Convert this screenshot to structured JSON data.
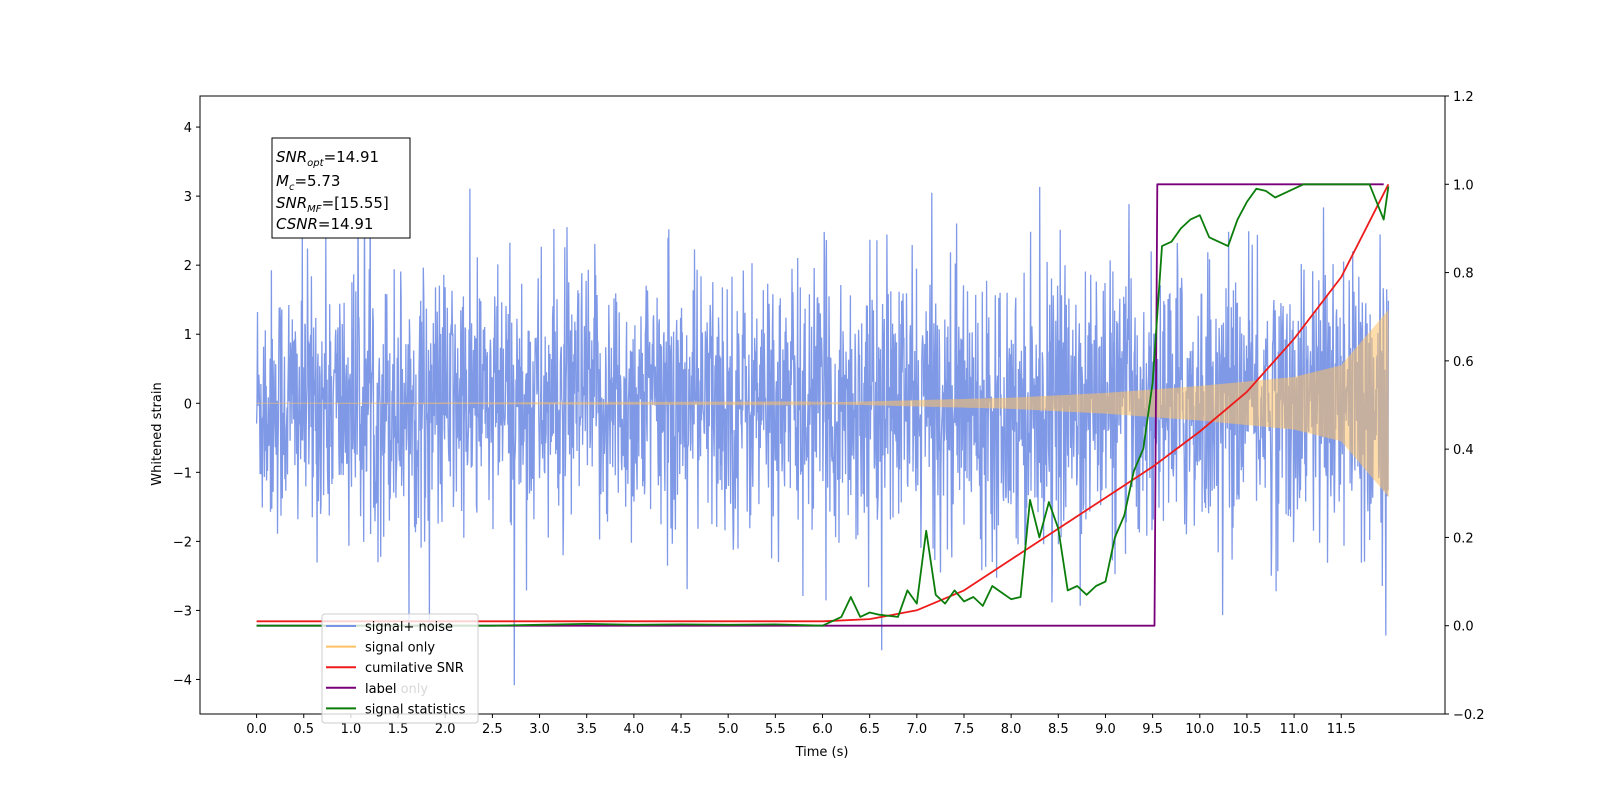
{
  "chart_data": {
    "type": "line",
    "xlabel": "Time (s)",
    "ylabel": "Whitened strain",
    "xlim": [
      -0.6,
      12.6
    ],
    "ylim": [
      -4.5,
      4.45
    ],
    "y2lim": [
      -0.2,
      1.2
    ],
    "x_ticks": [
      "0.0",
      "0.5",
      "1.0",
      "1.5",
      "2.0",
      "2.5",
      "3.0",
      "3.5",
      "4.0",
      "4.5",
      "5.0",
      "5.5",
      "6.0",
      "6.5",
      "7.0",
      "7.5",
      "8.0",
      "8.5",
      "9.0",
      "9.5",
      "10.0",
      "10.5",
      "11.0",
      "11.5"
    ],
    "y_ticks": [
      "4",
      "3",
      "2",
      "1",
      "0",
      "−1",
      "−2",
      "−3",
      "−4"
    ],
    "y2_ticks": [
      "1.2",
      "1.0",
      "0.8",
      "0.6",
      "0.4",
      "0.2",
      "0.0",
      "−0.2"
    ],
    "annotation": {
      "snr_opt": {
        "base": "SNR",
        "sub": "opt",
        "value": "=14.91"
      },
      "mc": {
        "base": "M",
        "sub": "c",
        "value": "=5.73"
      },
      "snr_mf": {
        "base": "SNR",
        "sub": "MF",
        "value": "=[15.55]"
      },
      "csnr": {
        "base": "CSNR",
        "sub": "",
        "value": "=14.91"
      }
    },
    "legend": {
      "placement": "lower-left",
      "entries": [
        {
          "label": "signal+ noise",
          "color": "#7893e6"
        },
        {
          "label": "signal only",
          "color": "#ffc165"
        },
        {
          "label": "cumilative SNR",
          "color": "#ee1b1b"
        },
        {
          "label": "label",
          "color": "#7a007a"
        },
        {
          "label": "signal statistics",
          "color": "#0b7d0b"
        }
      ],
      "obscured_text": "label only"
    },
    "series": [
      {
        "name": "signal+ noise",
        "axis": "left",
        "description_range": [
          -4.1,
          4.05
        ],
        "t_range": [
          0.0,
          12.0
        ]
      },
      {
        "name": "signal only",
        "axis": "left",
        "amplitude_at_t": [
          [
            0.0,
            0.0
          ],
          [
            6.0,
            0.01
          ],
          [
            8.0,
            0.08
          ],
          [
            9.0,
            0.15
          ],
          [
            10.0,
            0.25
          ],
          [
            11.0,
            0.38
          ],
          [
            11.5,
            0.55
          ],
          [
            12.0,
            1.35
          ]
        ]
      },
      {
        "name": "cumilative SNR",
        "axis": "right",
        "x": [
          0.0,
          6.0,
          6.5,
          7.0,
          7.5,
          8.0,
          8.5,
          9.0,
          9.5,
          10.0,
          10.5,
          11.0,
          11.5,
          12.0
        ],
        "y": [
          0.01,
          0.01,
          0.015,
          0.035,
          0.08,
          0.15,
          0.22,
          0.29,
          0.36,
          0.44,
          0.53,
          0.65,
          0.79,
          1.0
        ]
      },
      {
        "name": "label",
        "axis": "right",
        "x": [
          0.0,
          9.52,
          9.55,
          11.95
        ],
        "y": [
          0.0,
          0.0,
          1.0,
          1.0
        ]
      },
      {
        "name": "signal statistics",
        "axis": "right",
        "x": [
          0.0,
          2.5,
          3.0,
          3.5,
          4.0,
          4.5,
          5.0,
          5.5,
          6.0,
          6.2,
          6.3,
          6.4,
          6.5,
          6.6,
          6.8,
          6.9,
          7.0,
          7.1,
          7.2,
          7.3,
          7.4,
          7.5,
          7.6,
          7.7,
          7.8,
          7.9,
          8.0,
          8.1,
          8.2,
          8.3,
          8.4,
          8.5,
          8.6,
          8.7,
          8.8,
          8.9,
          9.0,
          9.1,
          9.2,
          9.3,
          9.4,
          9.5,
          9.6,
          9.7,
          9.8,
          9.9,
          10.0,
          10.1,
          10.2,
          10.3,
          10.4,
          10.5,
          10.6,
          10.7,
          10.8,
          10.9,
          11.0,
          11.1,
          11.2,
          11.5,
          11.8,
          11.95,
          12.0
        ],
        "y": [
          0.0,
          0.0,
          0.002,
          0.004,
          0.002,
          0.003,
          0.002,
          0.003,
          0.0,
          0.02,
          0.065,
          0.02,
          0.03,
          0.025,
          0.02,
          0.08,
          0.05,
          0.215,
          0.07,
          0.05,
          0.08,
          0.055,
          0.065,
          0.045,
          0.09,
          0.075,
          0.06,
          0.065,
          0.285,
          0.2,
          0.28,
          0.22,
          0.08,
          0.09,
          0.07,
          0.09,
          0.1,
          0.2,
          0.25,
          0.35,
          0.4,
          0.55,
          0.86,
          0.87,
          0.9,
          0.92,
          0.93,
          0.88,
          0.87,
          0.86,
          0.92,
          0.96,
          0.99,
          0.985,
          0.97,
          0.98,
          0.99,
          1.0,
          1.0,
          1.0,
          1.0,
          0.92,
          0.995
        ]
      }
    ],
    "grid": false
  }
}
